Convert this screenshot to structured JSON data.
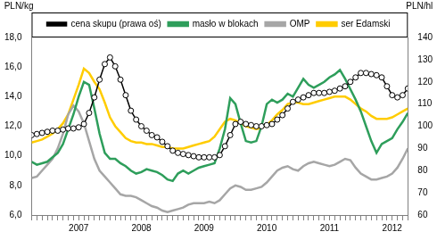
{
  "chart_data": {
    "type": "line",
    "ylabel": "PLN/kg",
    "y2label": "PLN/hl",
    "categories": [
      null,
      null,
      null,
      null,
      null,
      null,
      null,
      null,
      null,
      "2007",
      null,
      null,
      null,
      null,
      null,
      null,
      null,
      null,
      null,
      null,
      null,
      "2008",
      null,
      null,
      null,
      null,
      null,
      null,
      null,
      null,
      null,
      null,
      null,
      "2009",
      null,
      null,
      null,
      null,
      null,
      null,
      null,
      null,
      null,
      null,
      null,
      "2010",
      null,
      null,
      null,
      null,
      null,
      null,
      null,
      null,
      null,
      null,
      null,
      "2011",
      null,
      null,
      null,
      null,
      null,
      null,
      null,
      null,
      null,
      null,
      null,
      "2012",
      null,
      null,
      null
    ],
    "series": [
      {
        "name": "masło w blokach",
        "color": "#2e9e5b",
        "marker": "none",
        "axis": "y",
        "values": [
          9.6,
          9.4,
          9.5,
          9.6,
          9.9,
          10.2,
          10.8,
          11.8,
          12.8,
          14.0,
          15.0,
          14.8,
          13.2,
          11.5,
          10.2,
          9.8,
          9.8,
          9.5,
          9.3,
          9.0,
          8.8,
          8.9,
          9.1,
          9.0,
          8.9,
          8.7,
          8.4,
          8.3,
          8.8,
          9.0,
          8.8,
          9.0,
          9.2,
          9.3,
          9.4,
          9.5,
          10.5,
          11.8,
          13.9,
          13.5,
          12.2,
          11.0,
          10.9,
          11.0,
          12.0,
          13.5,
          13.8,
          13.6,
          13.8,
          14.2,
          14.0,
          14.6,
          15.2,
          14.8,
          14.6,
          14.8,
          15.0,
          15.3,
          15.5,
          15.8,
          15.2,
          14.5,
          13.8,
          13.0,
          12.0,
          11.0,
          10.2,
          10.8,
          11.0,
          11.2,
          11.8,
          12.3,
          12.9
        ]
      },
      {
        "name": "OMP",
        "color": "#a6a6a6",
        "marker": "none",
        "axis": "y",
        "values": [
          8.5,
          8.6,
          9.0,
          9.4,
          9.8,
          10.5,
          11.5,
          12.8,
          13.4,
          13.0,
          12.2,
          11.0,
          9.8,
          9.0,
          8.6,
          8.2,
          7.8,
          7.4,
          7.3,
          7.3,
          7.2,
          7.0,
          6.8,
          6.6,
          6.5,
          6.3,
          6.2,
          6.3,
          6.4,
          6.5,
          6.7,
          6.8,
          6.8,
          6.8,
          6.9,
          6.8,
          7.0,
          7.4,
          7.8,
          8.0,
          7.9,
          7.7,
          7.7,
          7.8,
          7.9,
          8.2,
          8.6,
          9.0,
          9.2,
          9.3,
          9.1,
          9.0,
          9.3,
          9.5,
          9.6,
          9.5,
          9.4,
          9.3,
          9.4,
          9.6,
          9.8,
          9.7,
          9.2,
          8.8,
          8.6,
          8.4,
          8.4,
          8.5,
          8.6,
          8.8,
          9.2,
          9.8,
          10.5
        ]
      },
      {
        "name": "ser Edamski",
        "color": "#ffcc00",
        "marker": "none",
        "axis": "y",
        "values": [
          10.9,
          11.0,
          11.1,
          11.3,
          11.5,
          11.8,
          12.2,
          12.8,
          13.8,
          14.8,
          15.9,
          15.6,
          15.0,
          14.5,
          13.6,
          12.6,
          12.0,
          11.6,
          11.2,
          11.0,
          10.9,
          10.9,
          10.8,
          10.8,
          10.7,
          10.6,
          10.6,
          10.5,
          10.5,
          10.5,
          10.6,
          10.7,
          10.8,
          10.9,
          11.0,
          11.3,
          11.8,
          12.3,
          12.5,
          12.4,
          12.2,
          12.0,
          11.9,
          11.8,
          11.9,
          12.1,
          12.4,
          12.8,
          13.1,
          13.5,
          13.6,
          13.6,
          13.5,
          13.5,
          13.6,
          13.7,
          13.8,
          13.9,
          14.0,
          14.0,
          14.0,
          13.8,
          13.5,
          13.2,
          13.0,
          12.7,
          12.5,
          12.5,
          12.5,
          12.6,
          12.8,
          13.0,
          13.2
        ]
      },
      {
        "name": "cena skupu (prawa oś)",
        "color": "#000000",
        "marker": "circle",
        "axis": "y2",
        "values": [
          96,
          96.5,
          97,
          97.5,
          98,
          98,
          98.5,
          99,
          99,
          99.5,
          101,
          106,
          113,
          121,
          128,
          131,
          127,
          121,
          114,
          107,
          103,
          100,
          98,
          96,
          95,
          93,
          91,
          89,
          88,
          87.5,
          87,
          86.5,
          86,
          86,
          86,
          86,
          87,
          91,
          96,
          101,
          102,
          101,
          100.5,
          100,
          100,
          100.5,
          101,
          103,
          105,
          108,
          111,
          112,
          113,
          114,
          115,
          115,
          115,
          115.5,
          116,
          117,
          118,
          120,
          122,
          124,
          124,
          123.5,
          123,
          122,
          118,
          114,
          113,
          114,
          117
        ]
      }
    ],
    "ylim": [
      6,
      18
    ],
    "yticks": [
      {
        "value": 6,
        "label": "6,0"
      },
      {
        "value": 8,
        "label": "8,0"
      },
      {
        "value": 10,
        "label": "10,0"
      },
      {
        "value": 12,
        "label": "12,0"
      },
      {
        "value": 14,
        "label": "14,0"
      },
      {
        "value": 16,
        "label": "16,0"
      },
      {
        "value": 18,
        "label": "18,0"
      }
    ],
    "y2lim": [
      60,
      140
    ],
    "y2ticks": [
      60,
      70,
      80,
      90,
      100,
      110,
      120,
      130,
      140
    ],
    "grid": false,
    "legend": "top"
  }
}
